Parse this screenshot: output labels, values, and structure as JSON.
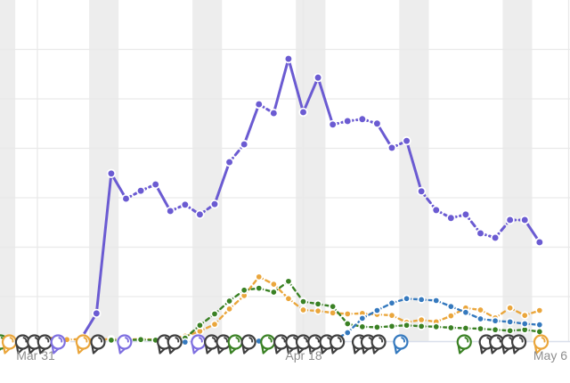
{
  "chart_data": {
    "type": "line",
    "title": "",
    "xlabel": "",
    "ylabel": "",
    "x_axis": {
      "unit": "day",
      "range_days": [
        -2.5,
        36
      ],
      "x_ticks": [
        {
          "label": "Mar 31",
          "day": 0
        },
        {
          "label": "Apr 18",
          "day": 18
        },
        {
          "label": "May 6",
          "day": 36
        }
      ]
    },
    "y_axis": {
      "labels_visible": false,
      "gridline_values": [
        10,
        20,
        30,
        40,
        50,
        60
      ],
      "ylim": [
        0,
        70
      ]
    },
    "weekend_bands_days": [
      [
        -3.5,
        -1.5
      ],
      [
        3.5,
        5.5
      ],
      [
        10.5,
        12.5
      ],
      [
        17.5,
        19.5
      ],
      [
        24.5,
        26.5
      ],
      [
        31.5,
        33.5
      ]
    ],
    "series": [
      {
        "name": "purple",
        "color_key": "purple",
        "marker": "dot",
        "line": "dashed",
        "start_day": 3,
        "values": [
          1.7,
          6.6,
          34.9,
          29.8,
          31.4,
          32.7,
          27.3,
          28.6,
          26.6,
          28.7,
          37.2,
          40.8,
          48.9,
          47.1,
          58.1,
          47.3,
          54.3,
          44.8,
          45.5,
          45.9,
          45.0,
          40.1,
          41.5,
          31.3,
          27.5,
          25.9,
          26.6,
          22.8,
          21.9,
          25.5,
          25.5,
          21.0
        ]
      },
      {
        "name": "orange",
        "color_key": "orange",
        "marker": "dot",
        "line": "dashed",
        "start_day": 0,
        "values": [
          1.4,
          1.4,
          1.3,
          1.4,
          1.3,
          1.4,
          1.3,
          1.4,
          1.3,
          1.5,
          2.0,
          3.0,
          4.4,
          7.5,
          10.2,
          14.0,
          12.5,
          9.6,
          7.3,
          7.1,
          6.7,
          6.5,
          6.6,
          6.4,
          6.2,
          4.8,
          5.3,
          4.9,
          6.1,
          7.7,
          7.3,
          5.7,
          7.7,
          6.2,
          7.2
        ]
      },
      {
        "name": "green",
        "color_key": "green",
        "marker": "dot",
        "line": "dashed",
        "start_day": 5,
        "values": [
          1.2,
          1.2,
          1.3,
          1.2,
          1.3,
          1.6,
          4.2,
          6.5,
          9.1,
          11.3,
          11.7,
          10.9,
          13.1,
          9.0,
          8.5,
          8.0,
          4.5,
          3.9,
          3.8,
          4.0,
          4.2,
          4.0,
          3.9,
          3.7,
          3.6,
          3.5,
          3.3,
          3.1,
          3.3,
          2.9
        ]
      },
      {
        "name": "blue",
        "color_key": "blue",
        "marker": "dot",
        "line": "dashed",
        "start_day": 10,
        "values": [
          0.8,
          null,
          null,
          null,
          null,
          1.0,
          null,
          null,
          null,
          null,
          1.1,
          2.7,
          5.6,
          7.2,
          8.7,
          9.6,
          9.4,
          9.2,
          8.0,
          6.8,
          5.5,
          5.1,
          4.9,
          4.5,
          4.3
        ]
      }
    ],
    "comment_markers": [
      {
        "day": -2.5,
        "color_key": "green"
      },
      {
        "day": -1.9,
        "color_key": "orange"
      },
      {
        "day": -1.0,
        "color_key": "gray"
      },
      {
        "day": -0.2,
        "color_key": "gray"
      },
      {
        "day": 0.5,
        "color_key": "gray"
      },
      {
        "day": 1.4,
        "color_key": "purple_marker"
      },
      {
        "day": 3.1,
        "color_key": "orange"
      },
      {
        "day": 4.1,
        "color_key": "gray"
      },
      {
        "day": 5.9,
        "color_key": "purple_marker"
      },
      {
        "day": 8.6,
        "color_key": "gray"
      },
      {
        "day": 9.3,
        "color_key": "gray"
      },
      {
        "day": 10.9,
        "color_key": "purple_marker"
      },
      {
        "day": 11.8,
        "color_key": "gray"
      },
      {
        "day": 12.6,
        "color_key": "gray"
      },
      {
        "day": 13.4,
        "color_key": "green"
      },
      {
        "day": 14.3,
        "color_key": "gray"
      },
      {
        "day": 15.6,
        "color_key": "green"
      },
      {
        "day": 16.5,
        "color_key": "gray"
      },
      {
        "day": 17.3,
        "color_key": "gray"
      },
      {
        "day": 18.0,
        "color_key": "gray"
      },
      {
        "day": 18.8,
        "color_key": "gray"
      },
      {
        "day": 19.6,
        "color_key": "gray"
      },
      {
        "day": 20.3,
        "color_key": "gray"
      },
      {
        "day": 21.8,
        "color_key": "gray"
      },
      {
        "day": 22.4,
        "color_key": "gray"
      },
      {
        "day": 23.1,
        "color_key": "gray"
      },
      {
        "day": 24.6,
        "color_key": "blue"
      },
      {
        "day": 28.9,
        "color_key": "green"
      },
      {
        "day": 30.4,
        "color_key": "gray"
      },
      {
        "day": 31.1,
        "color_key": "gray"
      },
      {
        "day": 31.9,
        "color_key": "gray"
      },
      {
        "day": 32.6,
        "color_key": "gray"
      },
      {
        "day": 34.1,
        "color_key": "orange"
      }
    ],
    "colors": {
      "purple": "#6b5bd2",
      "orange": "#eaa63c",
      "green": "#3a8124",
      "blue": "#3579be",
      "gray": "#3f3f3f",
      "purple_marker": "#7e6fe0",
      "band": "#ededed",
      "gridline": "#e9e9e9",
      "axis_line": "#d9dfeb",
      "tick_label": "#8e8e8e",
      "background": "#ffffff"
    },
    "legend": {
      "visible": false
    },
    "grid": {
      "horizontal": true,
      "vertical_at_ticks": true
    }
  }
}
